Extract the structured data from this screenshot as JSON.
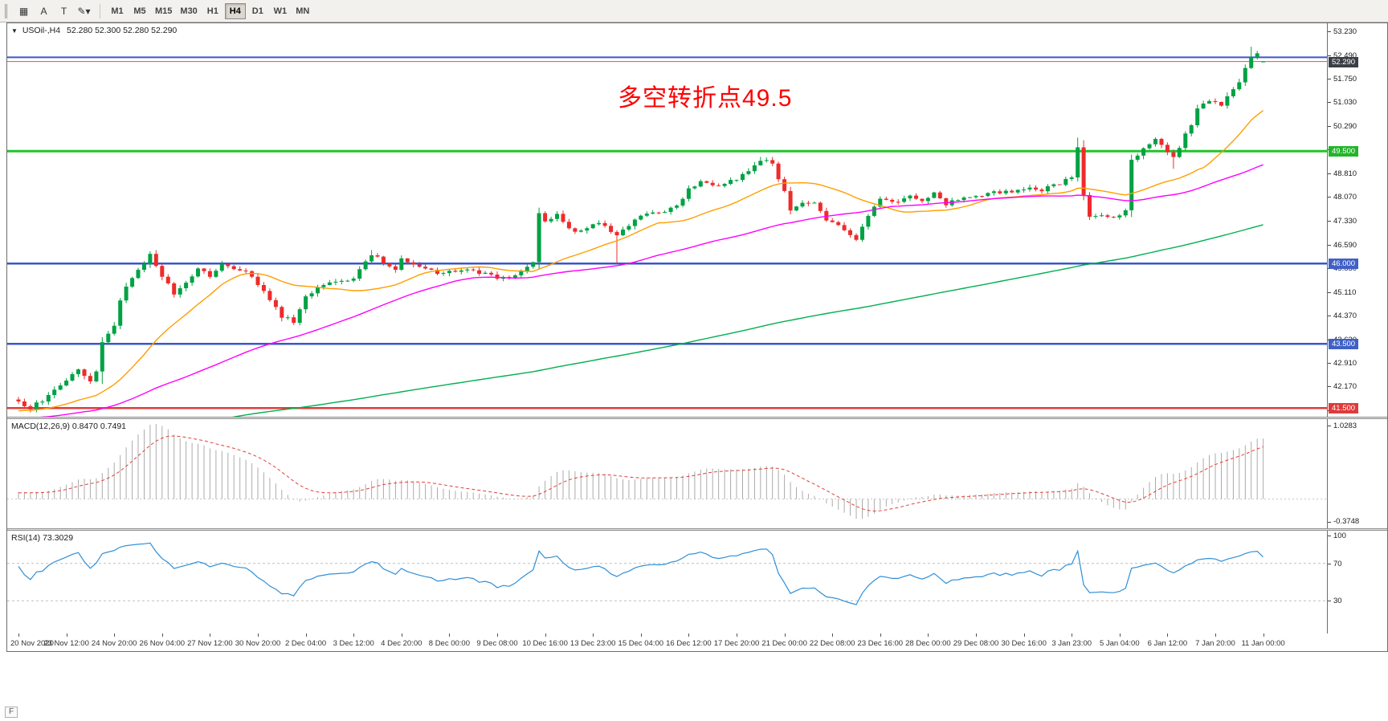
{
  "toolbar": {
    "buttons": [
      {
        "name": "chart-layout",
        "label": "▦"
      },
      {
        "name": "cursor-tool",
        "label": "A"
      },
      {
        "name": "text-tool",
        "label": "T"
      },
      {
        "name": "objects-menu",
        "label": "✎▾"
      }
    ],
    "timeframes": [
      "M1",
      "M5",
      "M15",
      "M30",
      "H1",
      "H4",
      "D1",
      "W1",
      "MN"
    ],
    "active_timeframe": "H4"
  },
  "header": {
    "title": "USOil-,H4",
    "ohlc": "52.280 52.300 52.280 52.290"
  },
  "annotation": {
    "text": "多空转折点49.5",
    "color": "#ff0000"
  },
  "price_axis": {
    "labels": [
      "53.230",
      "52.490",
      "51.750",
      "51.030",
      "50.290",
      "49.550",
      "48.810",
      "48.070",
      "47.330",
      "46.590",
      "45.850",
      "45.110",
      "44.370",
      "43.630",
      "42.910",
      "42.170",
      "41.430"
    ]
  },
  "time_axis": {
    "labels": [
      "20 Nov 2020",
      "23 Nov 12:00",
      "24 Nov 20:00",
      "26 Nov 04:00",
      "27 Nov 12:00",
      "30 Nov 20:00",
      "2 Dec 04:00",
      "3 Dec 12:00",
      "4 Dec 20:00",
      "8 Dec 00:00",
      "9 Dec 08:00",
      "10 Dec 16:00",
      "13 Dec 23:00",
      "15 Dec 04:00",
      "16 Dec 12:00",
      "17 Dec 20:00",
      "21 Dec 00:00",
      "22 Dec 08:00",
      "23 Dec 16:00",
      "28 Dec 00:00",
      "29 Dec 08:00",
      "30 Dec 16:00",
      "3 Jan 23:00",
      "5 Jan 04:00",
      "6 Jan 12:00",
      "7 Jan 20:00",
      "11 Jan 00:00"
    ]
  },
  "levels": [
    {
      "name": "upper-blue-line",
      "price": 52.42,
      "color": "#3a57c9",
      "width": 2,
      "badge": null,
      "badge_bg": null
    },
    {
      "name": "current-price-line",
      "price": 52.29,
      "color": "#f04a4a",
      "width": 1,
      "badge": "52.290",
      "badge_bg": "#3a3f46"
    },
    {
      "name": "turning-point-line",
      "price": 49.5,
      "color": "#22c32a",
      "width": 3,
      "badge": "49.500",
      "badge_bg": "#23b42b"
    },
    {
      "name": "support-line-46",
      "price": 46.0,
      "color": "#3a57c9",
      "width": 2.5,
      "badge": "46.000",
      "badge_bg": "#4060c6"
    },
    {
      "name": "support-line-43-5",
      "price": 43.5,
      "color": "#3a57c9",
      "width": 2.5,
      "badge": "43.500",
      "badge_bg": "#4060c6"
    },
    {
      "name": "lower-red-line",
      "price": 41.5,
      "color": "#e23b3b",
      "width": 2.5,
      "badge": "41.500",
      "badge_bg": "#dd3b3b"
    }
  ],
  "indicators": {
    "macd": {
      "label": "MACD(12,26,9) 0.8470 0.7491",
      "fast": 12,
      "slow": 26,
      "signal": 9,
      "scale_max": "1.0283",
      "scale_min": "-0.3748",
      "histogram_color": "#ababab",
      "signal_color": "#e04038"
    },
    "rsi": {
      "label": "RSI(14) 73.3029",
      "period": 14,
      "scale_labels": [
        "100",
        "70",
        "30"
      ],
      "level_lines": [
        70,
        30
      ],
      "line_color": "#2f8fd6"
    }
  },
  "chart_data": {
    "type": "candlestick",
    "symbol": "USOil-",
    "timeframe": "H4",
    "count": 209,
    "last_close": 52.29,
    "last_candle": {
      "open": 52.28,
      "high": 52.3,
      "low": 52.28,
      "close": 52.29
    },
    "up_color": "#00a243",
    "down_color": "#ee2b2b",
    "price_anchors": [
      [
        0,
        41.65
      ],
      [
        2,
        41.5
      ],
      [
        5,
        41.85
      ],
      [
        8,
        42.35
      ],
      [
        10,
        42.75
      ],
      [
        12,
        42.35
      ],
      [
        13,
        42.6
      ],
      [
        14,
        43.5
      ],
      [
        16,
        44.1
      ],
      [
        17,
        44.9
      ],
      [
        19,
        45.6
      ],
      [
        22,
        46.25
      ],
      [
        24,
        45.6
      ],
      [
        26,
        45.05
      ],
      [
        30,
        45.85
      ],
      [
        32,
        45.6
      ],
      [
        34,
        45.95
      ],
      [
        38,
        45.8
      ],
      [
        41,
        45.1
      ],
      [
        44,
        44.35
      ],
      [
        46,
        44.2
      ],
      [
        48,
        44.95
      ],
      [
        51,
        45.35
      ],
      [
        56,
        45.5
      ],
      [
        59,
        46.3
      ],
      [
        61,
        46.05
      ],
      [
        63,
        45.85
      ],
      [
        64,
        46.1
      ],
      [
        67,
        45.95
      ],
      [
        70,
        45.7
      ],
      [
        72,
        45.75
      ],
      [
        75,
        45.8
      ],
      [
        78,
        45.7
      ],
      [
        80,
        45.5
      ],
      [
        83,
        45.65
      ],
      [
        86,
        46.0
      ],
      [
        87,
        47.55
      ],
      [
        88,
        47.3
      ],
      [
        90,
        47.5
      ],
      [
        93,
        46.95
      ],
      [
        95,
        47.15
      ],
      [
        97,
        47.3
      ],
      [
        100,
        46.85
      ],
      [
        103,
        47.35
      ],
      [
        104,
        47.5
      ],
      [
        107,
        47.6
      ],
      [
        110,
        47.75
      ],
      [
        112,
        48.3
      ],
      [
        114,
        48.55
      ],
      [
        116,
        48.4
      ],
      [
        120,
        48.6
      ],
      [
        123,
        49.0
      ],
      [
        124,
        49.25
      ],
      [
        126,
        49.15
      ],
      [
        128,
        48.2
      ],
      [
        129,
        47.65
      ],
      [
        131,
        47.85
      ],
      [
        133,
        47.9
      ],
      [
        135,
        47.4
      ],
      [
        137,
        47.15
      ],
      [
        140,
        46.75
      ],
      [
        142,
        47.5
      ],
      [
        144,
        48.0
      ],
      [
        146,
        47.9
      ],
      [
        149,
        48.1
      ],
      [
        151,
        47.95
      ],
      [
        153,
        48.2
      ],
      [
        155,
        47.85
      ],
      [
        158,
        48.1
      ],
      [
        161,
        48.15
      ],
      [
        163,
        48.25
      ],
      [
        166,
        48.2
      ],
      [
        169,
        48.35
      ],
      [
        171,
        48.3
      ],
      [
        174,
        48.5
      ],
      [
        176,
        48.7
      ],
      [
        177,
        49.6
      ],
      [
        178,
        48.1
      ],
      [
        179,
        47.5
      ],
      [
        181,
        47.55
      ],
      [
        183,
        47.4
      ],
      [
        185,
        47.7
      ],
      [
        186,
        49.2
      ],
      [
        188,
        49.55
      ],
      [
        190,
        49.9
      ],
      [
        191,
        49.75
      ],
      [
        193,
        49.3
      ],
      [
        196,
        50.35
      ],
      [
        197,
        50.85
      ],
      [
        199,
        51.0
      ],
      [
        201,
        50.95
      ],
      [
        202,
        51.2
      ],
      [
        204,
        51.7
      ],
      [
        205,
        52.1
      ],
      [
        206,
        52.45
      ],
      [
        207,
        52.5
      ],
      [
        208,
        52.29
      ]
    ],
    "wick_overrides": [
      {
        "i": 14,
        "low": 42.25
      },
      {
        "i": 22,
        "high": 46.38
      },
      {
        "i": 59,
        "high": 46.42
      },
      {
        "i": 100,
        "low": 46.0
      },
      {
        "i": 124,
        "high": 49.32
      },
      {
        "i": 177,
        "high": 49.92
      },
      {
        "i": 193,
        "low": 48.95
      },
      {
        "i": 206,
        "high": 52.75
      },
      {
        "i": 207,
        "high": 52.62
      }
    ],
    "moving_averages": [
      {
        "name": "ma-fast",
        "period": 21,
        "color": "#ff9e00"
      },
      {
        "name": "ma-medium",
        "period": 60,
        "color": "#ff00ff"
      },
      {
        "name": "ma-slow",
        "period": 200,
        "color": "#00b050"
      }
    ]
  },
  "footer": {
    "quick_nav": "F"
  }
}
